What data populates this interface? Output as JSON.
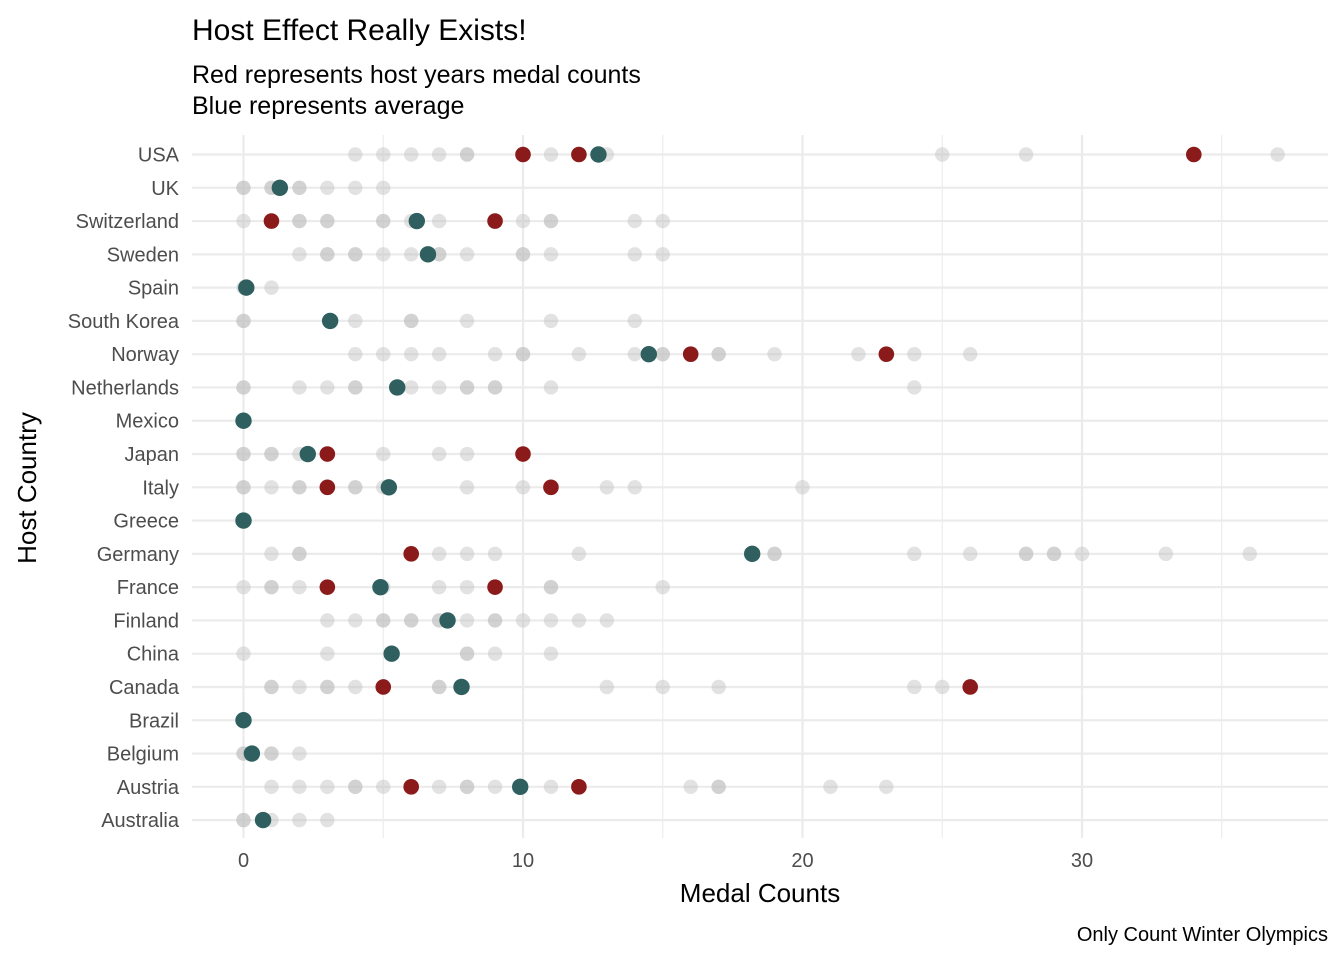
{
  "chart_data": {
    "type": "scatter",
    "title": "Host Effect Really Exists!",
    "subtitle_lines": [
      "Red represents host years medal counts",
      "Blue represents average"
    ],
    "xlabel": "Medal Counts",
    "ylabel": "Host Country",
    "caption": "Only Count Winter Olympics",
    "xlim": [
      -1.8,
      38.8
    ],
    "x_ticks": [
      0,
      10,
      20,
      30
    ],
    "grid": true,
    "colors": {
      "history": "#bebebe",
      "host": "#8b1a1a",
      "average": "#2f5f5f",
      "grid": "#ebebeb",
      "text": "#4d4d4d"
    },
    "categories": [
      "Australia",
      "Austria",
      "Belgium",
      "Brazil",
      "Canada",
      "China",
      "Finland",
      "France",
      "Germany",
      "Greece",
      "Italy",
      "Japan",
      "Mexico",
      "Netherlands",
      "Norway",
      "South Korea",
      "Spain",
      "Sweden",
      "Switzerland",
      "UK",
      "USA"
    ],
    "series": [
      {
        "role": "history",
        "points": [
          {
            "country": "Australia",
            "values": [
              0,
              0,
              1,
              2,
              3
            ]
          },
          {
            "country": "Austria",
            "values": [
              1,
              2,
              3,
              4,
              4,
              5,
              7,
              8,
              8,
              9,
              11,
              16,
              17,
              17,
              21,
              23
            ]
          },
          {
            "country": "Belgium",
            "values": [
              0,
              0,
              1,
              1,
              2
            ]
          },
          {
            "country": "Brazil",
            "values": [
              0
            ]
          },
          {
            "country": "Canada",
            "values": [
              1,
              1,
              2,
              3,
              3,
              4,
              7,
              7,
              13,
              15,
              17,
              24,
              25
            ]
          },
          {
            "country": "China",
            "values": [
              0,
              3,
              8,
              8,
              9,
              11
            ]
          },
          {
            "country": "Finland",
            "values": [
              3,
              4,
              5,
              5,
              6,
              6,
              7,
              7,
              8,
              9,
              9,
              10,
              11,
              12,
              13
            ]
          },
          {
            "country": "France",
            "values": [
              0,
              1,
              1,
              2,
              5,
              7,
              8,
              11,
              11,
              15
            ]
          },
          {
            "country": "Germany",
            "values": [
              1,
              2,
              2,
              7,
              8,
              9,
              12,
              19,
              19,
              24,
              26,
              28,
              28,
              29,
              29,
              30,
              33,
              36
            ]
          },
          {
            "country": "Greece",
            "values": [
              0
            ]
          },
          {
            "country": "Italy",
            "values": [
              0,
              0,
              1,
              2,
              2,
              4,
              4,
              5,
              8,
              10,
              13,
              14,
              20
            ]
          },
          {
            "country": "Japan",
            "values": [
              0,
              0,
              1,
              1,
              2,
              5,
              7,
              8
            ]
          },
          {
            "country": "Mexico",
            "values": [
              0
            ]
          },
          {
            "country": "Netherlands",
            "values": [
              0,
              0,
              2,
              3,
              4,
              4,
              6,
              7,
              8,
              8,
              9,
              9,
              11,
              24
            ]
          },
          {
            "country": "Norway",
            "values": [
              4,
              5,
              6,
              7,
              9,
              10,
              10,
              12,
              14,
              15,
              15,
              17,
              17,
              19,
              22,
              24,
              26
            ]
          },
          {
            "country": "South Korea",
            "values": [
              0,
              0,
              4,
              6,
              6,
              8,
              11,
              14
            ]
          },
          {
            "country": "Spain",
            "values": [
              0,
              1
            ]
          },
          {
            "country": "Sweden",
            "values": [
              2,
              3,
              3,
              4,
              4,
              5,
              6,
              7,
              7,
              8,
              10,
              10,
              11,
              14,
              15
            ]
          },
          {
            "country": "Switzerland",
            "values": [
              0,
              2,
              2,
              3,
              3,
              5,
              5,
              6,
              7,
              10,
              11,
              11,
              14,
              15
            ]
          },
          {
            "country": "UK",
            "values": [
              0,
              0,
              1,
              1,
              2,
              2,
              3,
              4,
              5
            ]
          },
          {
            "country": "USA",
            "values": [
              4,
              5,
              6,
              7,
              8,
              8,
              11,
              13,
              25,
              28,
              37
            ]
          }
        ]
      },
      {
        "role": "host",
        "points": [
          {
            "country": "Austria",
            "values": [
              6,
              12
            ]
          },
          {
            "country": "Canada",
            "values": [
              5,
              26
            ]
          },
          {
            "country": "France",
            "values": [
              3,
              9
            ]
          },
          {
            "country": "Germany",
            "values": [
              6
            ]
          },
          {
            "country": "Italy",
            "values": [
              3,
              11
            ]
          },
          {
            "country": "Japan",
            "values": [
              3,
              10
            ]
          },
          {
            "country": "Norway",
            "values": [
              16,
              23
            ]
          },
          {
            "country": "Switzerland",
            "values": [
              1,
              9
            ]
          },
          {
            "country": "USA",
            "values": [
              10,
              12,
              34
            ]
          }
        ]
      },
      {
        "role": "average",
        "points": [
          {
            "country": "Australia",
            "value": 0.7
          },
          {
            "country": "Austria",
            "value": 9.9
          },
          {
            "country": "Belgium",
            "value": 0.3
          },
          {
            "country": "Brazil",
            "value": 0
          },
          {
            "country": "Canada",
            "value": 7.8
          },
          {
            "country": "China",
            "value": 5.3
          },
          {
            "country": "Finland",
            "value": 7.3
          },
          {
            "country": "France",
            "value": 4.9
          },
          {
            "country": "Germany",
            "value": 18.2
          },
          {
            "country": "Greece",
            "value": 0
          },
          {
            "country": "Italy",
            "value": 5.2
          },
          {
            "country": "Japan",
            "value": 2.3
          },
          {
            "country": "Mexico",
            "value": 0
          },
          {
            "country": "Netherlands",
            "value": 5.5
          },
          {
            "country": "Norway",
            "value": 14.5
          },
          {
            "country": "South Korea",
            "value": 3.1
          },
          {
            "country": "Spain",
            "value": 0.1
          },
          {
            "country": "Sweden",
            "value": 6.6
          },
          {
            "country": "Switzerland",
            "value": 6.2
          },
          {
            "country": "UK",
            "value": 1.3
          },
          {
            "country": "USA",
            "value": 12.7
          }
        ]
      }
    ]
  }
}
